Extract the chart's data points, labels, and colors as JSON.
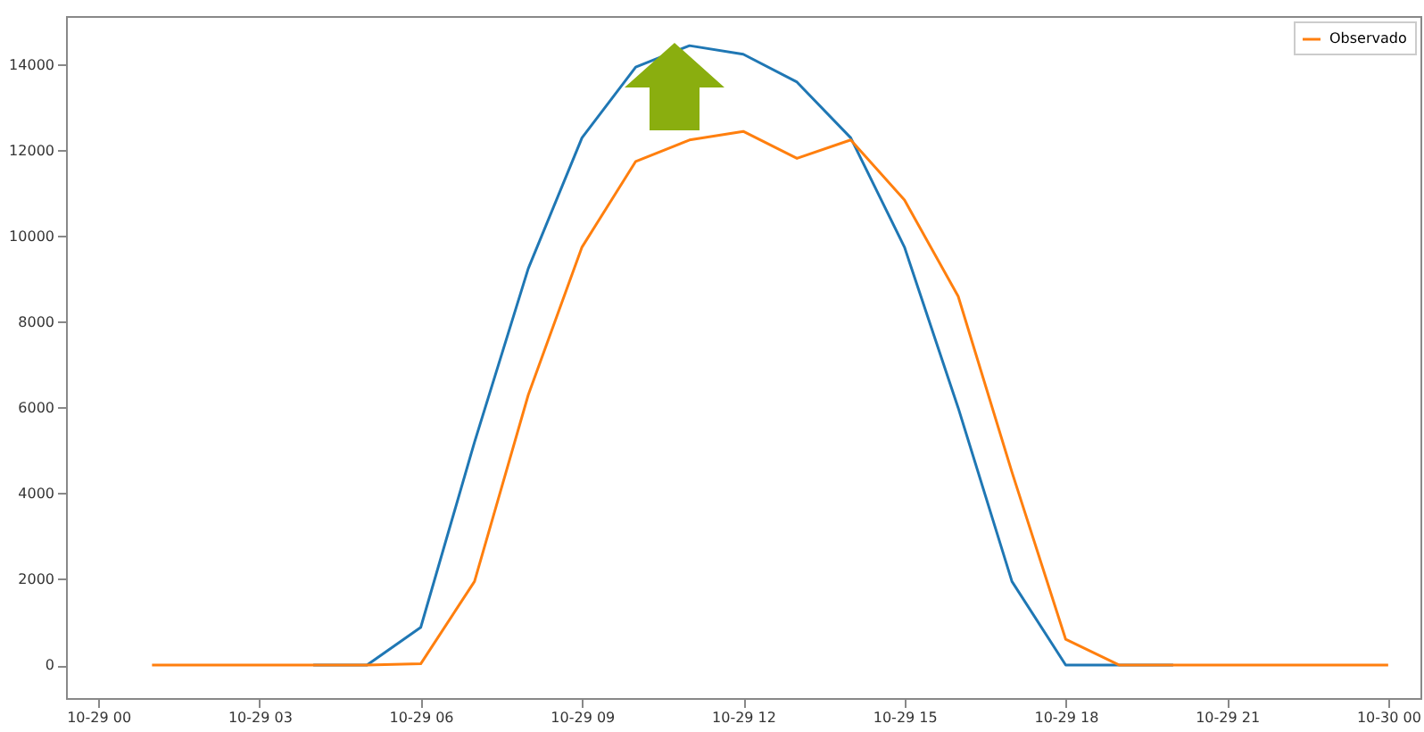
{
  "chart_data": {
    "type": "line",
    "categories": [
      "10-29 00",
      null,
      null,
      "10-29 03",
      null,
      null,
      "10-29 06",
      null,
      null,
      "10-29 09",
      null,
      null,
      "10-29 12",
      null,
      null,
      "10-29 15",
      null,
      null,
      "10-29 18",
      null,
      null,
      "10-29 21",
      null,
      null,
      "10-30 00"
    ],
    "series": [
      {
        "color": "#1f77b4",
        "values": [
          null,
          null,
          null,
          null,
          0,
          0,
          880,
          5200,
          9250,
          12300,
          13950,
          14450,
          14250,
          13600,
          12300,
          9750,
          6000,
          1950,
          0,
          0,
          0,
          null,
          null,
          null,
          null
        ]
      },
      {
        "name": "Observado",
        "color": "#ff7f0e",
        "values": [
          null,
          0,
          0,
          0,
          0,
          0,
          30,
          1950,
          6300,
          9750,
          11750,
          12250,
          12450,
          11820,
          12250,
          10850,
          8600,
          4500,
          600,
          0,
          0,
          0,
          0,
          0,
          0
        ]
      }
    ],
    "ylim": [
      -770,
      15140
    ],
    "yticks": [
      0,
      2000,
      4000,
      6000,
      8000,
      10000,
      12000,
      14000
    ],
    "legend": "top right",
    "grid": false
  }
}
